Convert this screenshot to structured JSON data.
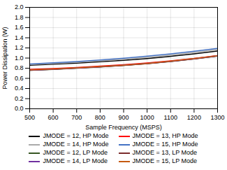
{
  "chart_data": {
    "type": "line",
    "xlabel": "Sample Frequency (MSPS)",
    "ylabel": "Power Dissipation (W)",
    "xlim": [
      500,
      1300
    ],
    "ylim": [
      0,
      2
    ],
    "xticks": [
      500,
      600,
      700,
      800,
      900,
      1000,
      1100,
      1200,
      1300
    ],
    "yticks": [
      {
        "value": 0,
        "label": "0.0"
      },
      0.2,
      0.4,
      0.6,
      0.8,
      {
        "value": 1,
        "label": "1.0"
      },
      1.2,
      1.4,
      1.6,
      1.8,
      {
        "value": 2,
        "label": "2.0"
      }
    ],
    "x": [
      500,
      600,
      700,
      800,
      900,
      1000,
      1100,
      1200,
      1300
    ],
    "series": [
      {
        "name": "JMODE = 12, HP Mode",
        "color": "#000000",
        "values": [
          0.86,
          0.878,
          0.9,
          0.926,
          0.955,
          0.99,
          1.035,
          1.083,
          1.14
        ]
      },
      {
        "name": "JMODE = 13, HP Mode",
        "color": "#ff0000",
        "values": [
          0.775,
          0.793,
          0.815,
          0.84,
          0.868,
          0.902,
          0.945,
          0.992,
          1.05
        ]
      },
      {
        "name": "JMODE = 14, HP Mode",
        "color": "#aaaaaa",
        "values": [
          0.872,
          0.893,
          0.918,
          0.945,
          0.977,
          1.015,
          1.06,
          1.11,
          1.168
        ]
      },
      {
        "name": "JMODE = 15, HP Mode",
        "color": "#4472c4",
        "values": [
          0.882,
          0.906,
          0.932,
          0.962,
          0.997,
          1.038,
          1.083,
          1.133,
          1.192
        ]
      },
      {
        "name": "JMODE = 12, LP Mode",
        "color": "#375623",
        "values": [
          0.758,
          0.777,
          0.8,
          0.825,
          0.854,
          0.888,
          0.932,
          0.982,
          1.04
        ]
      },
      {
        "name": "JMODE = 13, LP Mode",
        "color": "#7b2c2c",
        "values": [
          0.76,
          0.779,
          0.802,
          0.827,
          0.856,
          0.89,
          0.934,
          0.984,
          1.042
        ]
      },
      {
        "name": "JMODE = 14, LP Mode",
        "color": "#7030a0",
        "values": [
          0.762,
          0.781,
          0.804,
          0.829,
          0.858,
          0.892,
          0.936,
          0.986,
          1.044
        ]
      },
      {
        "name": "JMODE = 15, LP Mode",
        "color": "#c55a11",
        "values": [
          0.764,
          0.783,
          0.806,
          0.831,
          0.86,
          0.894,
          0.938,
          0.988,
          1.046
        ]
      }
    ],
    "grid": true,
    "legend": "bottom"
  }
}
